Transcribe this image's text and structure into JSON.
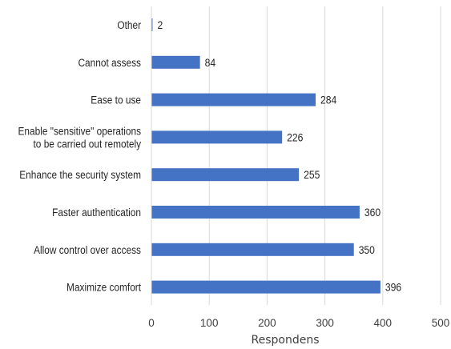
{
  "chart_data": {
    "type": "bar",
    "orientation": "horizontal",
    "title": "",
    "xlabel": "Respondens",
    "ylabel": "",
    "xlim": [
      0,
      500
    ],
    "xticks": [
      0,
      100,
      200,
      300,
      400,
      500
    ],
    "grid": "vertical",
    "legend": "none",
    "bar_color": "#4472C4",
    "categories": [
      "Other",
      "Cannot assess",
      "Ease to use",
      "Enable \"sensitive\" operations to be carried out remotely",
      "Enhance the security system",
      "Faster authentication",
      "Allow control over access",
      "Maximize comfort"
    ],
    "category_label_lines": [
      [
        "Other"
      ],
      [
        "Cannot assess"
      ],
      [
        "Ease to use"
      ],
      [
        "Enable \"sensitive\" operations",
        "to be carried out remotely"
      ],
      [
        "Enhance the security system"
      ],
      [
        "Faster authentication"
      ],
      [
        "Allow control over access"
      ],
      [
        "Maximize comfort"
      ]
    ],
    "values": [
      2,
      84,
      284,
      226,
      255,
      360,
      350,
      396
    ]
  }
}
